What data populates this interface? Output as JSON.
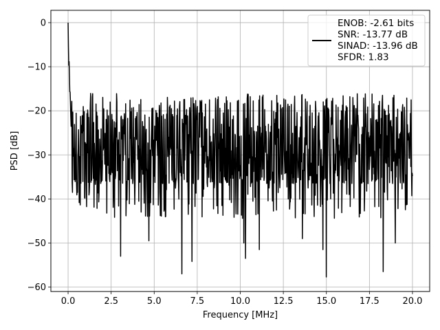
{
  "chart_data": {
    "type": "line",
    "title": "",
    "xlabel": "Frequency [MHz]",
    "ylabel": "PSD [dB]",
    "xlim": [
      -1.0,
      21.0
    ],
    "ylim": [
      -61.0,
      2.8
    ],
    "xticks": [
      0.0,
      2.5,
      5.0,
      7.5,
      10.0,
      12.5,
      15.0,
      17.5,
      20.0
    ],
    "xtick_labels": [
      "0.0",
      "2.5",
      "5.0",
      "7.5",
      "10.0",
      "12.5",
      "15.0",
      "17.5",
      "20.0"
    ],
    "yticks": [
      0,
      -10,
      -20,
      -30,
      -40,
      -50,
      -60
    ],
    "ytick_labels": [
      "0",
      "−10",
      "−20",
      "−30",
      "−40",
      "−50",
      "−60"
    ],
    "grid": true,
    "legend_position": "top-right",
    "legend_lines": [
      "ENOB: -2.61 bits",
      "SNR: -13.77 dB",
      "SINAD: -13.96 dB",
      "SFDR: 1.83"
    ],
    "series": [
      {
        "color": "#000000",
        "x_range": [
          0.0,
          20.0
        ],
        "n_points": 1024,
        "envelope_upper_db": -19.0,
        "envelope_lower_db": -36.5,
        "peak": {
          "x": 0.0,
          "y": 0.0
        },
        "deep_nulls": [
          {
            "x": 3.05,
            "y": -53.0
          },
          {
            "x": 4.7,
            "y": -49.5
          },
          {
            "x": 6.6,
            "y": -57.0
          },
          {
            "x": 7.2,
            "y": -54.2
          },
          {
            "x": 10.2,
            "y": -50.0
          },
          {
            "x": 10.3,
            "y": -53.5
          },
          {
            "x": 11.1,
            "y": -51.5
          },
          {
            "x": 13.6,
            "y": -49.0
          },
          {
            "x": 14.8,
            "y": -51.5
          },
          {
            "x": 15.0,
            "y": -57.7
          },
          {
            "x": 18.3,
            "y": -56.5
          },
          {
            "x": 19.0,
            "y": -50.0
          }
        ]
      }
    ]
  }
}
